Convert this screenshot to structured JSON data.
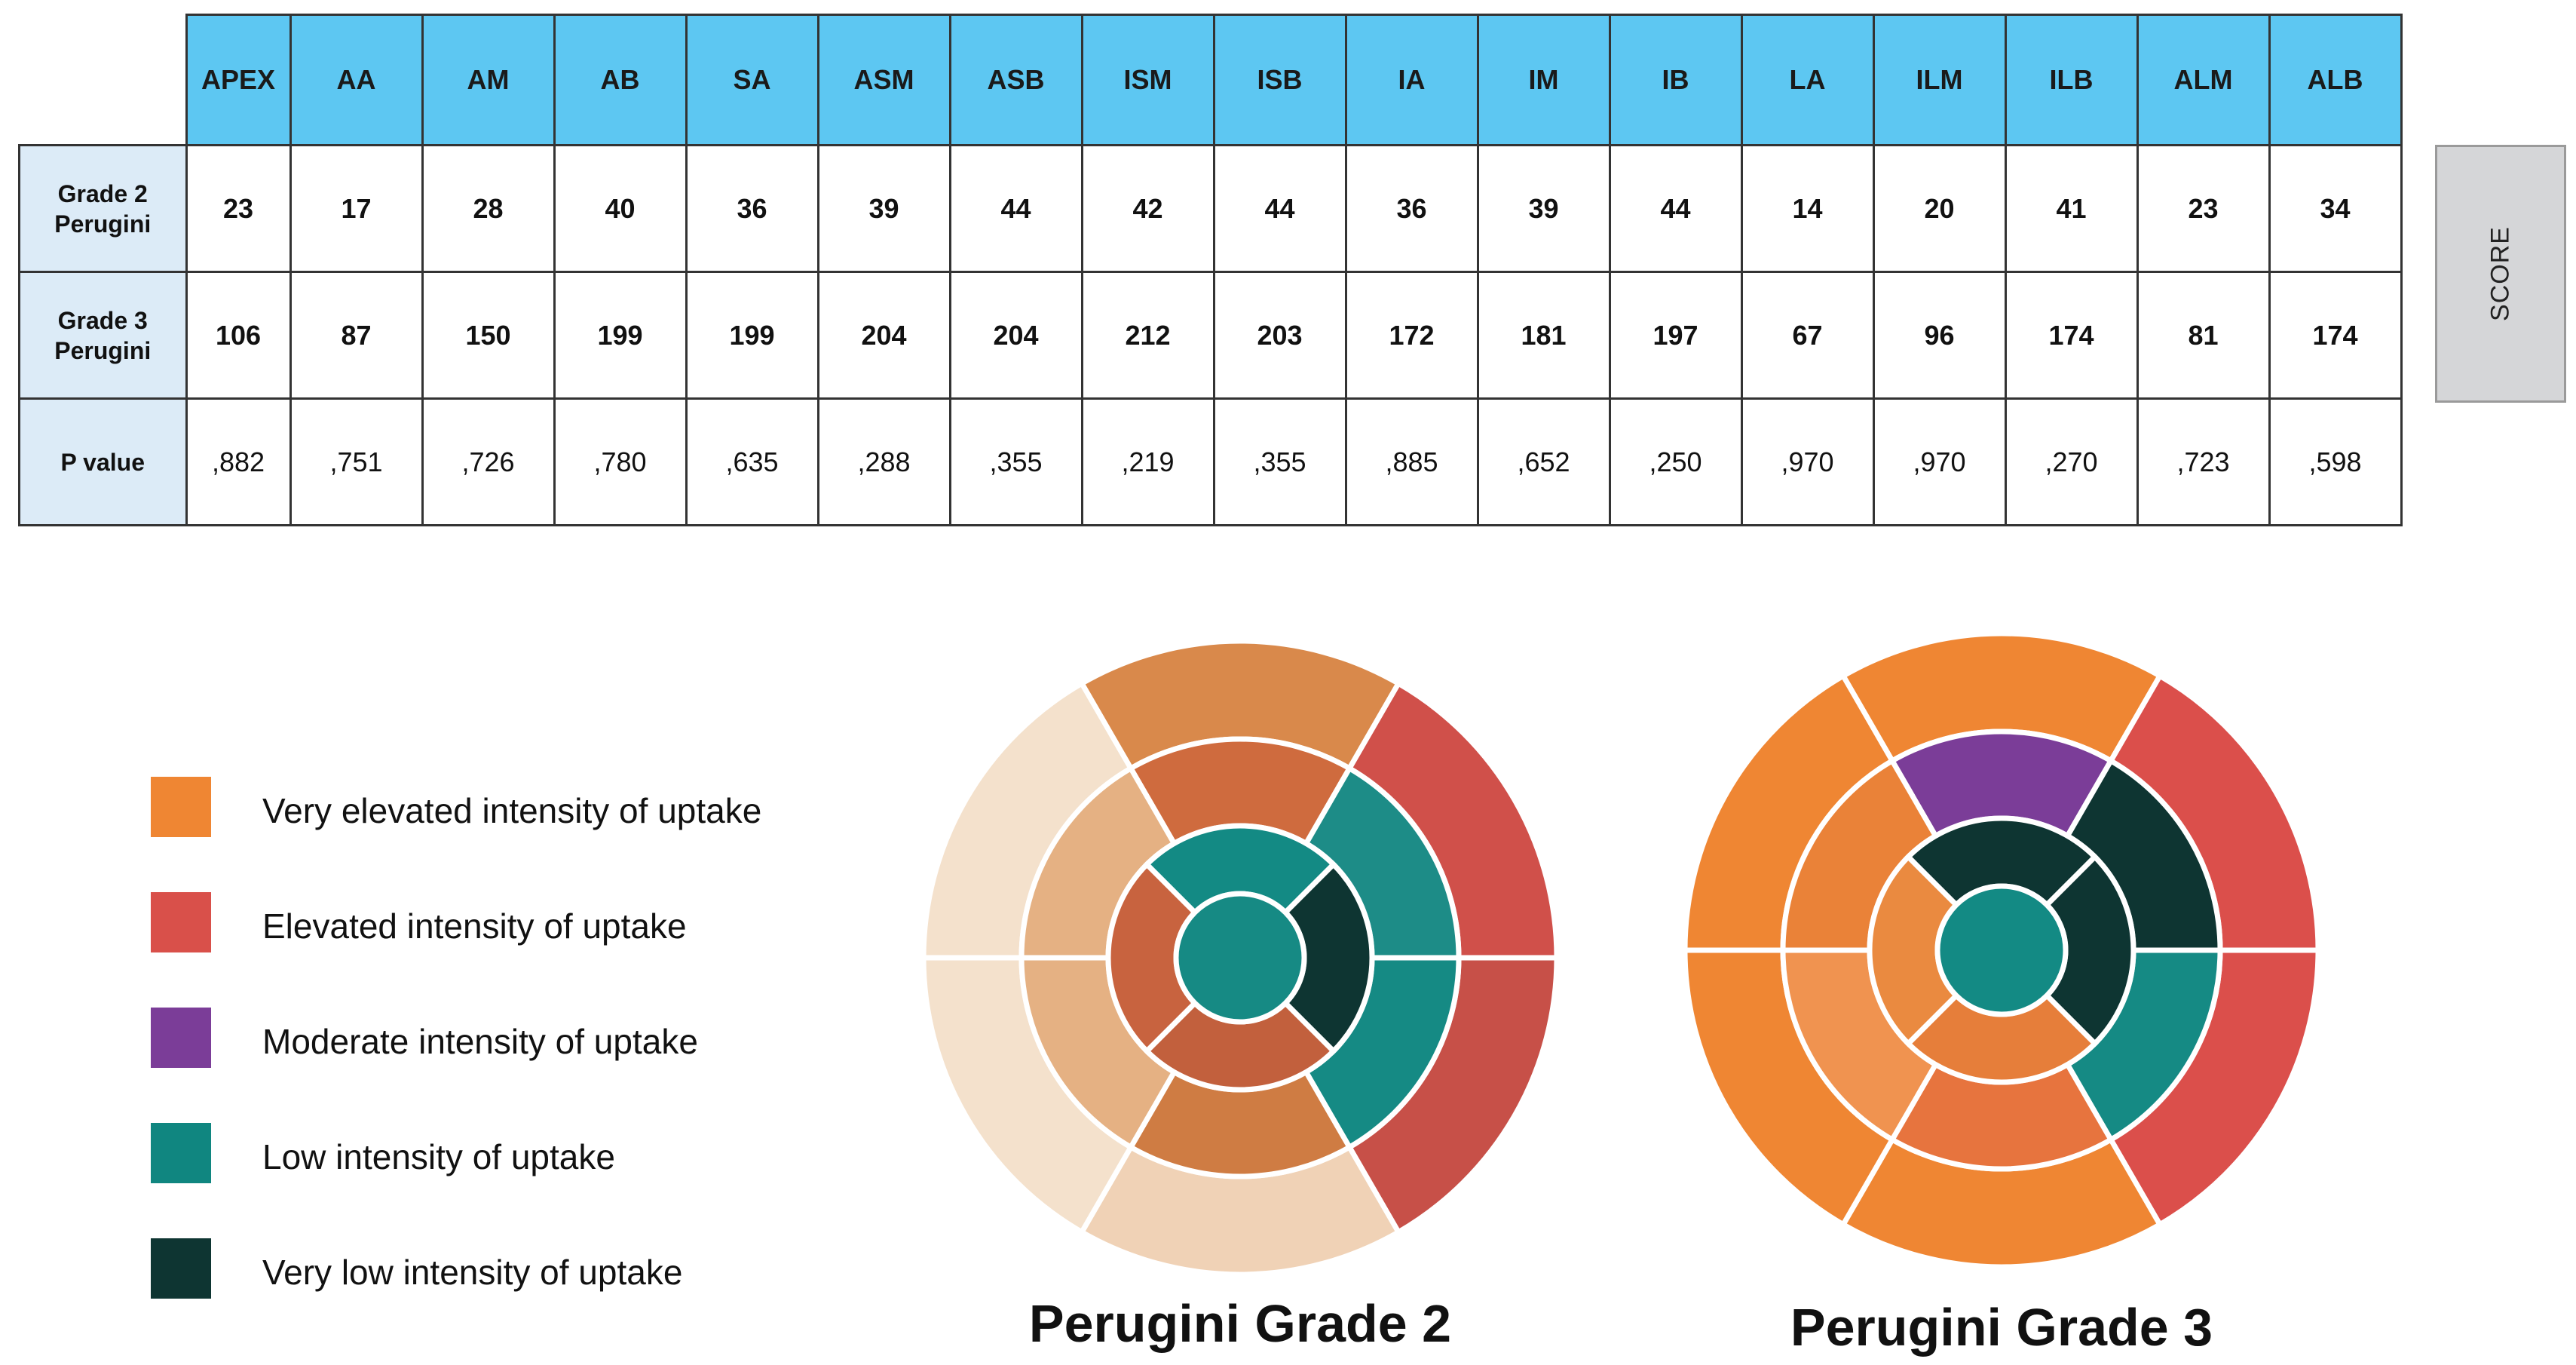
{
  "table": {
    "columns": [
      "APEX",
      "AA",
      "AM",
      "AB",
      "SA",
      "ASM",
      "ASB",
      "ISM",
      "ISB",
      "IA",
      "IM",
      "IB",
      "LA",
      "ILM",
      "ILB",
      "ALM",
      "ALB"
    ],
    "rows": [
      {
        "label": "Grade 2 Perugini",
        "values": [
          "23",
          "17",
          "28",
          "40",
          "36",
          "39",
          "44",
          "42",
          "44",
          "36",
          "39",
          "44",
          "14",
          "20",
          "41",
          "23",
          "34"
        ]
      },
      {
        "label": "Grade 3 Perugini",
        "values": [
          "106",
          "87",
          "150",
          "199",
          "199",
          "204",
          "204",
          "212",
          "203",
          "172",
          "181",
          "197",
          "67",
          "96",
          "174",
          "81",
          "174"
        ]
      },
      {
        "label": "P value",
        "values": [
          ",882",
          ",751",
          ",726",
          ",780",
          ",635",
          ",288",
          ",355",
          ",219",
          ",355",
          ",885",
          ",652",
          ",250",
          ",970",
          ",970",
          ",270",
          ",723",
          ",598"
        ]
      }
    ],
    "score_label": "SCORE"
  },
  "legend": [
    {
      "label": "Very elevated intensity of uptake",
      "color": "#ef8633"
    },
    {
      "label": "Elevated intensity of uptake",
      "color": "#d9504a"
    },
    {
      "label": "Moderate intensity of uptake",
      "color": "#7b3d98"
    },
    {
      "label": "Low intensity of uptake",
      "color": "#108680"
    },
    {
      "label": "Very low intensity of uptake",
      "color": "#0e3532"
    }
  ],
  "bullseyes": [
    {
      "title": "Perugini Grade 2",
      "colors": {
        "apex": "#168a84",
        "inner": [
          "#138a84",
          "#0e3532",
          "#c2603d",
          "#c8633f"
        ],
        "mid": [
          "#cf6b3e",
          "#1d8c87",
          "#158a84",
          "#cf7c43",
          "#e5b183",
          "#e5b183"
        ],
        "outer": [
          "#d9894b",
          "#d0504a",
          "#c75048",
          "#f0d2b6",
          "#f4e1cc",
          "#f4e1cc"
        ]
      }
    },
    {
      "title": "Perugini Grade 3",
      "colors": {
        "apex": "#138a84",
        "inner": [
          "#0e3532",
          "#0e3532",
          "#e67e3a",
          "#ea8a40"
        ],
        "mid": [
          "#7b3d98",
          "#0e3532",
          "#158a84",
          "#e7743e",
          "#f09350",
          "#ea8238"
        ],
        "outer": [
          "#ef8633",
          "#db4f4b",
          "#db4f4b",
          "#ef8633",
          "#ef8633",
          "#ef8633"
        ]
      }
    }
  ]
}
